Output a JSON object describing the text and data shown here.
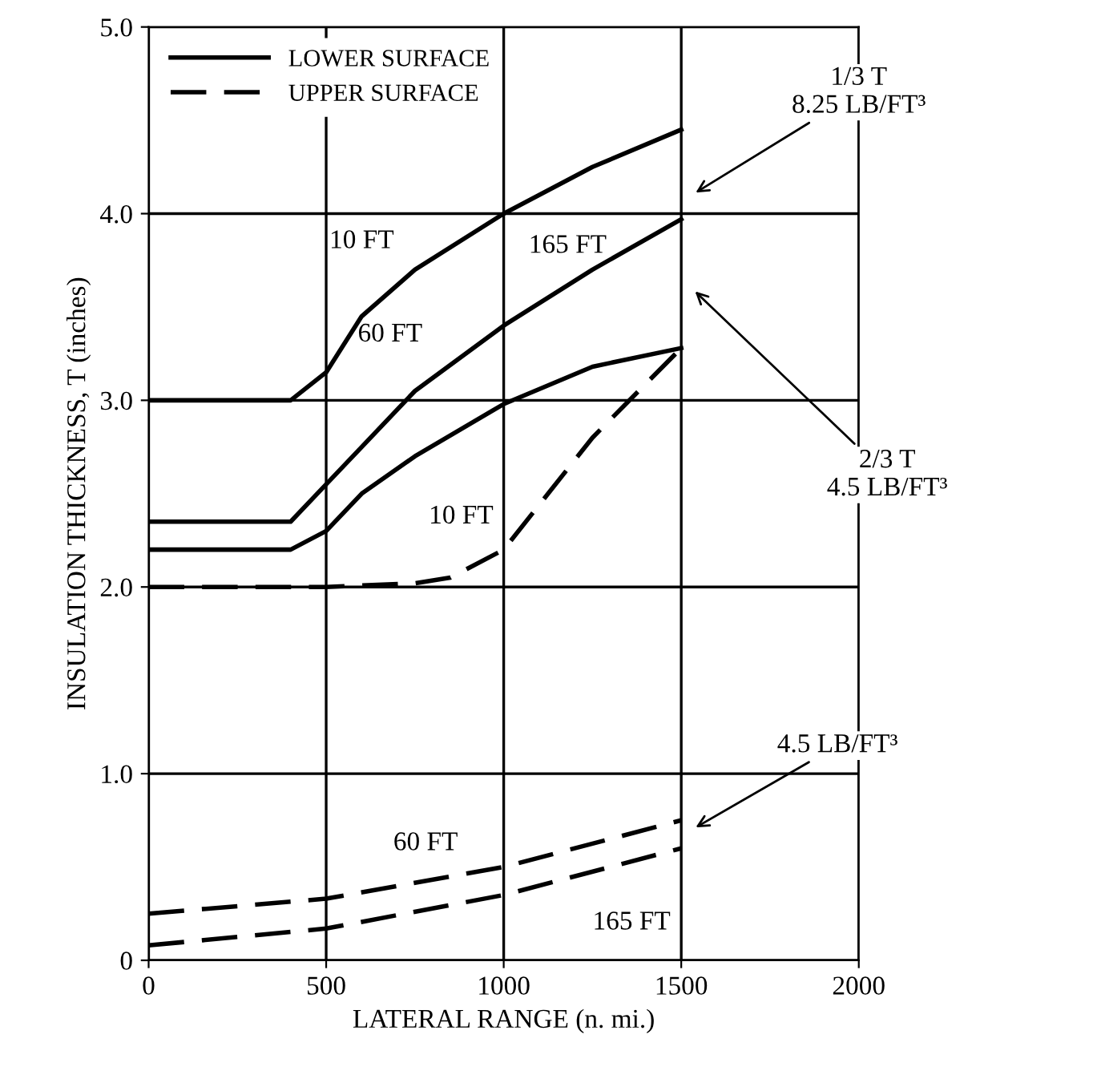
{
  "chart_data": {
    "type": "line",
    "xlabel": "LATERAL RANGE (n. mi.)",
    "ylabel": "INSULATION THICKNESS, T (inches)",
    "xlim": [
      0,
      2000
    ],
    "ylim": [
      0,
      5
    ],
    "xticks": [
      0,
      500,
      1000,
      1500,
      2000
    ],
    "yticks": [
      0,
      {
        "value": 1,
        "label": "1.0"
      },
      {
        "value": 2,
        "label": "2.0"
      },
      {
        "value": 3,
        "label": "3.0"
      },
      {
        "value": 4,
        "label": "4.0"
      },
      {
        "value": 5,
        "label": "5.0"
      }
    ],
    "grid": true,
    "legend": "top left",
    "marker": "none",
    "series": [
      {
        "name": "LOWER SURFACE",
        "color": "#000000",
        "line_style": "solid",
        "x": [
          0,
          400,
          500,
          600,
          750,
          1000,
          1250,
          1500
        ],
        "values": [
          3.0,
          3.0,
          3.15,
          3.45,
          3.7,
          4.0,
          4.25,
          4.45
        ]
      },
      {
        "color": "#000000",
        "line_style": "solid",
        "x": [
          0,
          400,
          500,
          600,
          750,
          1000,
          1250,
          1500
        ],
        "values": [
          2.35,
          2.35,
          2.55,
          2.75,
          3.05,
          3.4,
          3.7,
          3.97
        ]
      },
      {
        "color": "#000000",
        "line_style": "solid",
        "x": [
          0,
          400,
          500,
          600,
          750,
          1000,
          1250,
          1500
        ],
        "values": [
          2.2,
          2.2,
          2.3,
          2.5,
          2.7,
          2.98,
          3.18,
          3.28
        ]
      },
      {
        "name": "UPPER SURFACE",
        "color": "#000000",
        "line_style": "dashed",
        "x": [
          0,
          500,
          750,
          850,
          1000,
          1125,
          1250,
          1500
        ],
        "values": [
          2.0,
          2.0,
          2.02,
          2.05,
          2.2,
          2.5,
          2.8,
          3.28
        ]
      },
      {
        "color": "#000000",
        "line_style": "dashed",
        "x": [
          0,
          500,
          1000,
          1500
        ],
        "values": [
          0.25,
          0.33,
          0.5,
          0.75
        ]
      },
      {
        "color": "#000000",
        "line_style": "dashed",
        "x": [
          0,
          500,
          1000,
          1500
        ],
        "values": [
          0.08,
          0.17,
          0.35,
          0.6
        ]
      }
    ],
    "annotations": [
      "10 FT",
      "60 FT",
      "165 FT",
      "10 FT",
      "60 FT",
      "165 FT",
      "1/3 T\n8.25 LB/FT³",
      "2/3 T\n4.5 LB/FT³",
      "4.5 LB/FT³"
    ]
  }
}
